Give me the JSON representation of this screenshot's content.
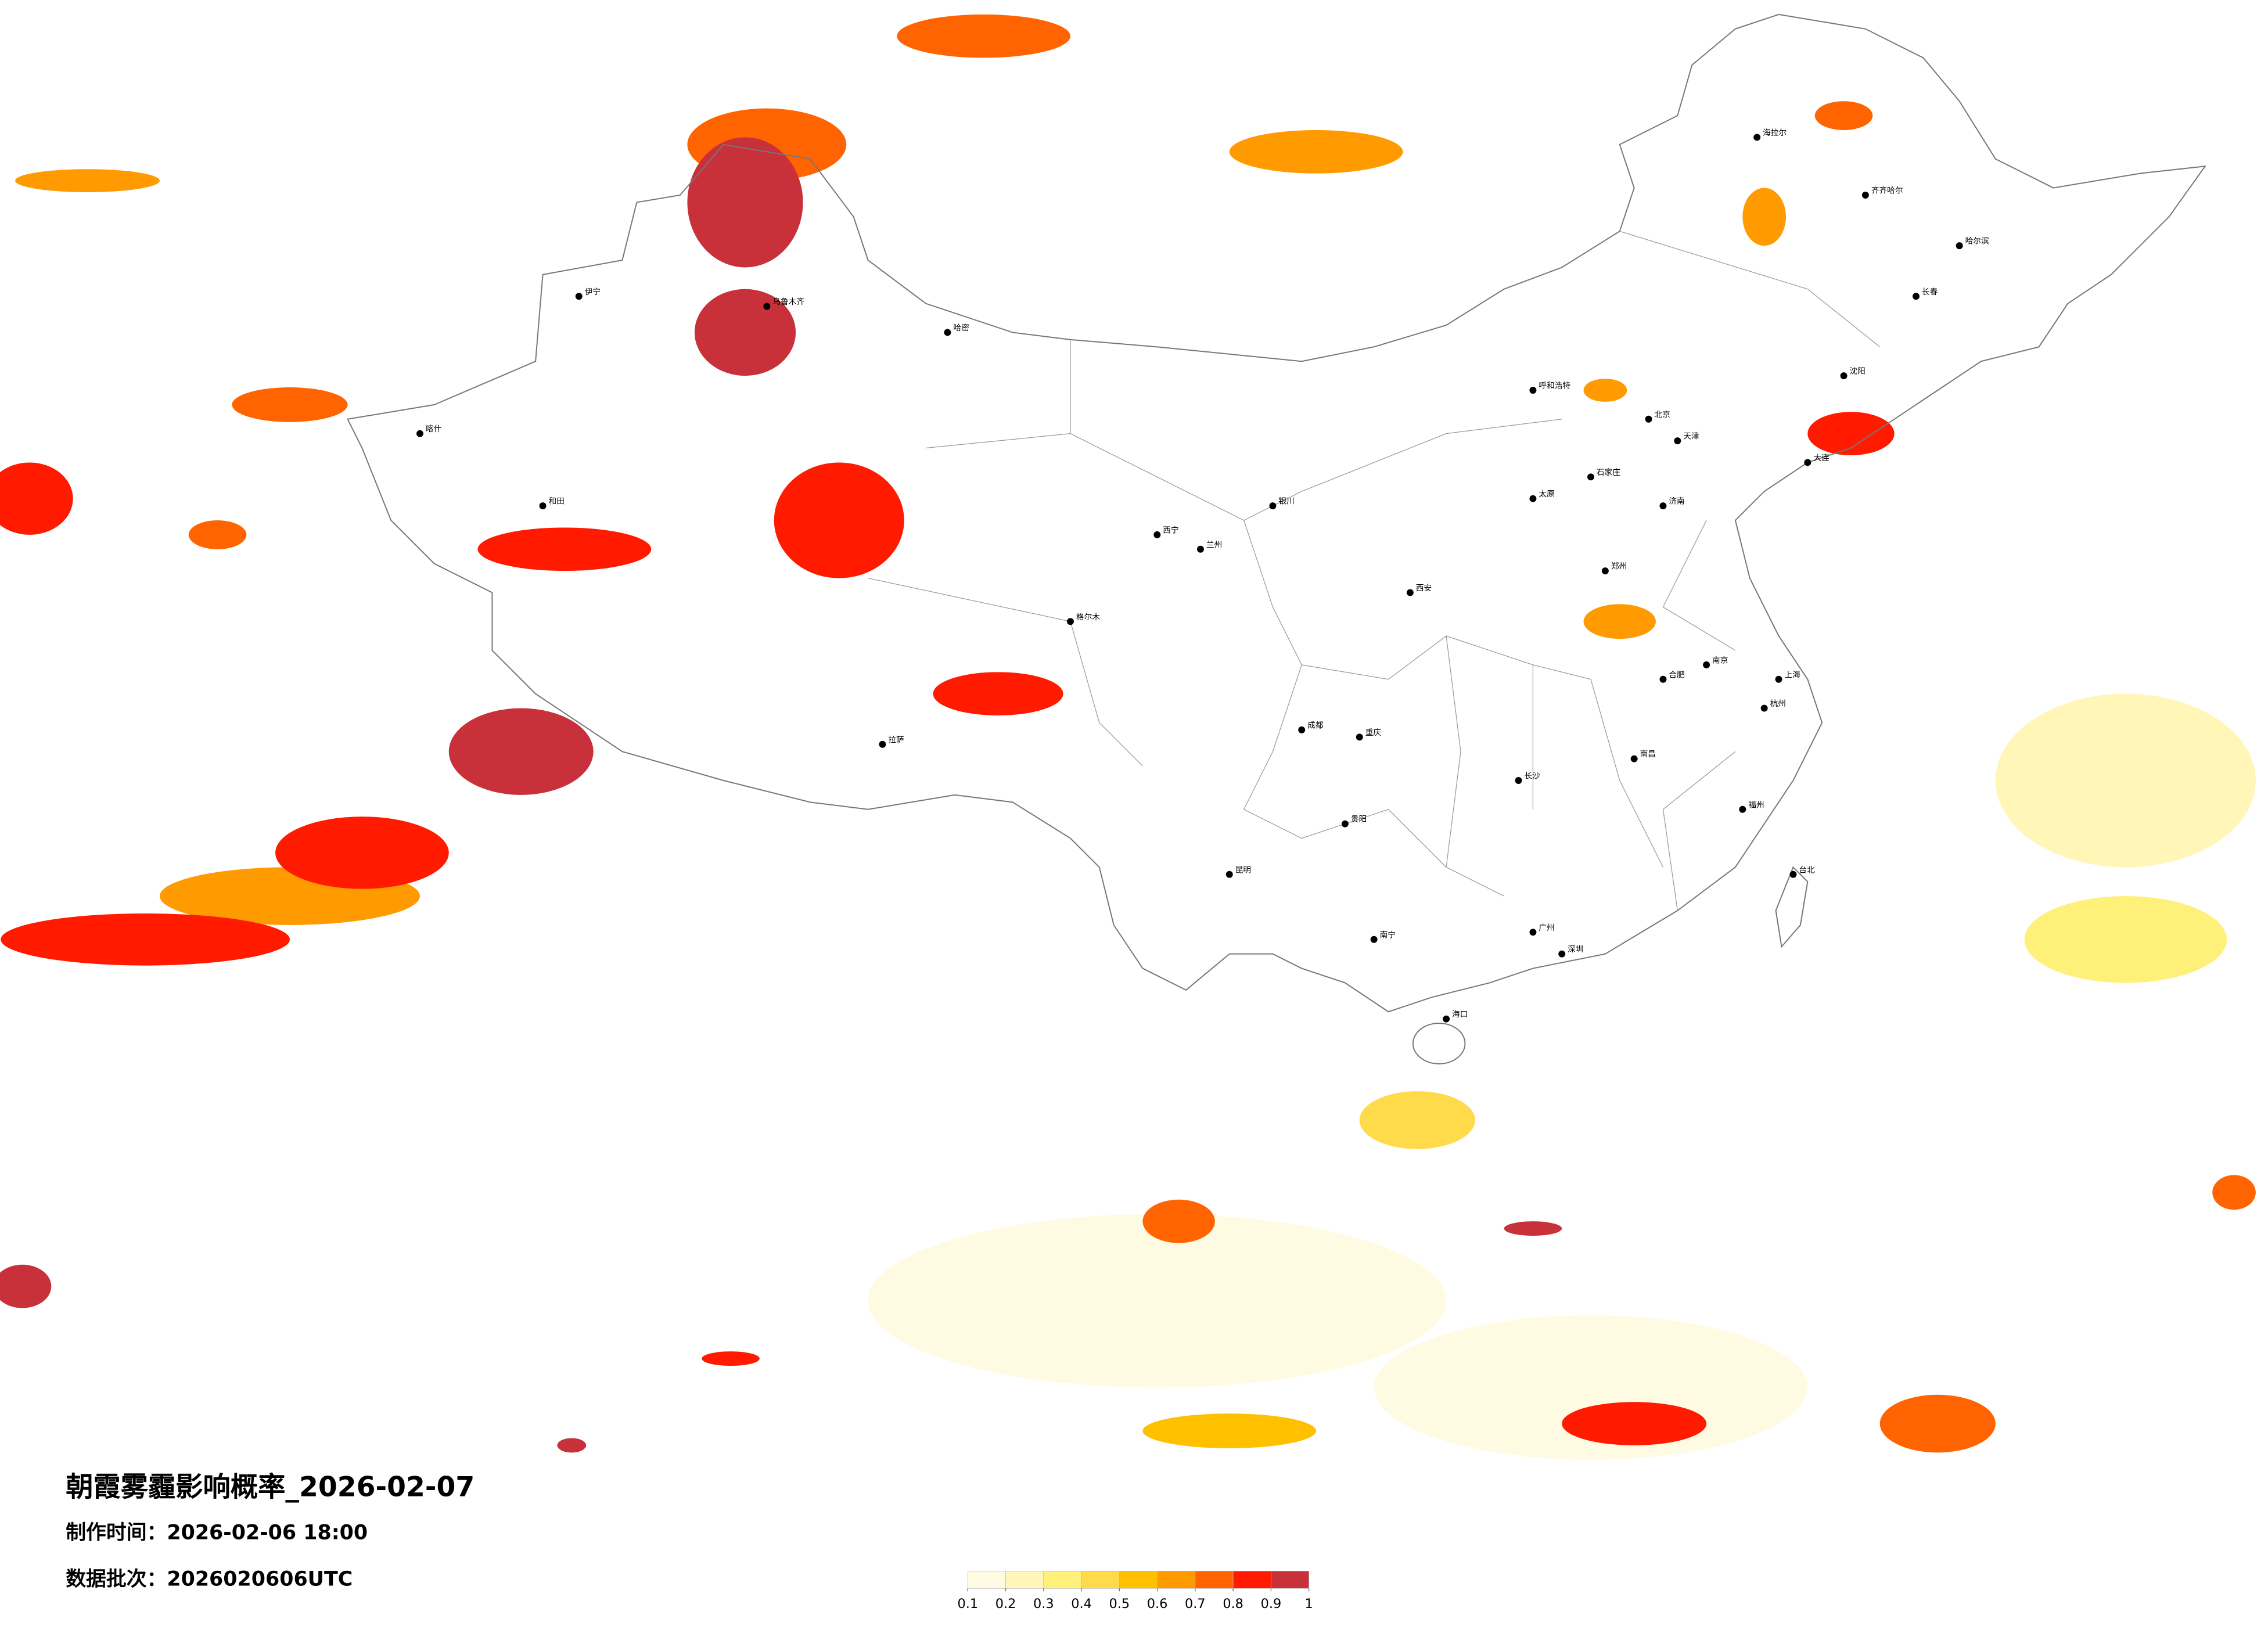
{
  "title": "朝霞雾霾影响概率_2026-02-07",
  "production_time": "制作时间：2026-02-06 18:00",
  "data_batch": "数据批次：2026020606UTC",
  "legend": {
    "ticks": [
      0.1,
      0.2,
      0.3,
      0.4,
      0.5,
      0.6,
      0.7,
      0.8,
      0.9,
      1
    ],
    "colors": [
      "#fffbe3",
      "#fff6b8",
      "#fff07a",
      "#ffda4a",
      "#ffc000",
      "#ff9a00",
      "#ff6400",
      "#ff1a00",
      "#c8303a"
    ]
  },
  "cities": [
    "北京",
    "天津",
    "上海",
    "广州",
    "深圳",
    "郑州",
    "西安",
    "成都",
    "重庆",
    "昆明",
    "拉萨",
    "乌鲁木齐",
    "哈尔滨",
    "长春",
    "沈阳",
    "呼和浩特",
    "兰州",
    "银川",
    "西宁",
    "贵阳",
    "南宁",
    "海口",
    "福州",
    "南昌",
    "长沙",
    "杭州",
    "南京",
    "合肥",
    "济南",
    "石家庄",
    "太原",
    "台北",
    "喀什",
    "和田",
    "齐齐哈尔",
    "海拉尔",
    "伊宁",
    "哈密",
    "格尔木",
    "大连"
  ]
}
